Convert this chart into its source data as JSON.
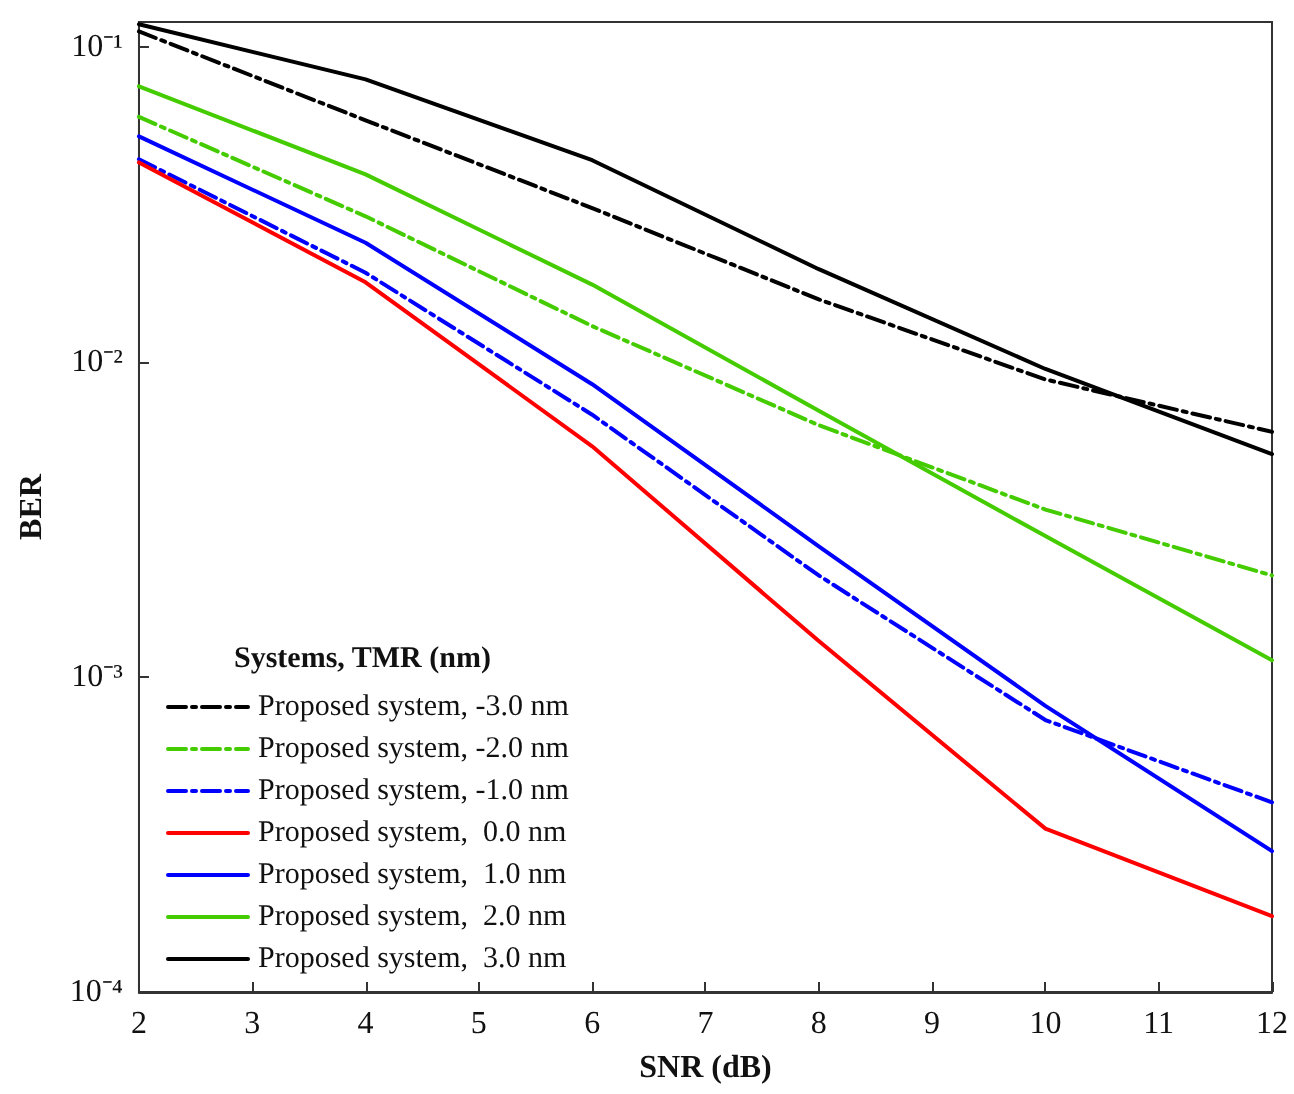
{
  "chart_data": {
    "type": "line",
    "xlabel": "SNR (dB)",
    "ylabel": "BER",
    "legend_title": "Systems, TMR (nm)",
    "x": [
      2,
      4,
      6,
      8,
      10,
      12
    ],
    "series": [
      {
        "name": "Proposed system, -3.0 nm",
        "color": "#000000",
        "line_style": "dashed",
        "values": [
          0.112,
          0.0585,
          0.0308,
          0.0158,
          0.0088,
          0.006
        ]
      },
      {
        "name": "Proposed system, -2.0 nm",
        "color": "#44cc00",
        "line_style": "dashed",
        "values": [
          0.06,
          0.029,
          0.013,
          0.0063,
          0.0034,
          0.0021
        ]
      },
      {
        "name": "Proposed system, -1.0 nm",
        "color": "#0000ff",
        "line_style": "dashed",
        "values": [
          0.044,
          0.0192,
          0.0068,
          0.0021,
          0.00073,
          0.0004
        ]
      },
      {
        "name": "Proposed system,  0.0 nm",
        "color": "#ff0000",
        "line_style": "solid",
        "values": [
          0.043,
          0.0179,
          0.0054,
          0.0013,
          0.00033,
          0.000174
        ]
      },
      {
        "name": "Proposed system,  1.0 nm",
        "color": "#0000ff",
        "line_style": "solid",
        "values": [
          0.052,
          0.0239,
          0.0085,
          0.0026,
          0.00081,
          0.00028
        ]
      },
      {
        "name": "Proposed system,  2.0 nm",
        "color": "#44cc00",
        "line_style": "solid",
        "values": [
          0.075,
          0.0394,
          0.0176,
          0.007,
          0.0028,
          0.00113
        ]
      },
      {
        "name": "Proposed system,  3.0 nm",
        "color": "#000000",
        "line_style": "solid",
        "values": [
          0.118,
          0.0789,
          0.0437,
          0.0197,
          0.0095,
          0.0051
        ]
      }
    ],
    "xlim": [
      2,
      12
    ],
    "xticks": [
      2,
      3,
      4,
      5,
      6,
      7,
      8,
      9,
      10,
      11,
      12
    ],
    "ylim": [
      0.0001,
      0.12
    ],
    "yticks": [
      {
        "value": 0.0001,
        "label": "10⁻⁴"
      },
      {
        "value": 0.001,
        "label": "10⁻³"
      },
      {
        "value": 0.01,
        "label": "10⁻²"
      },
      {
        "value": 0.1,
        "label": "10⁻¹"
      }
    ],
    "log": "y",
    "grid": false,
    "legend": "bottom left",
    "marker": "none"
  }
}
